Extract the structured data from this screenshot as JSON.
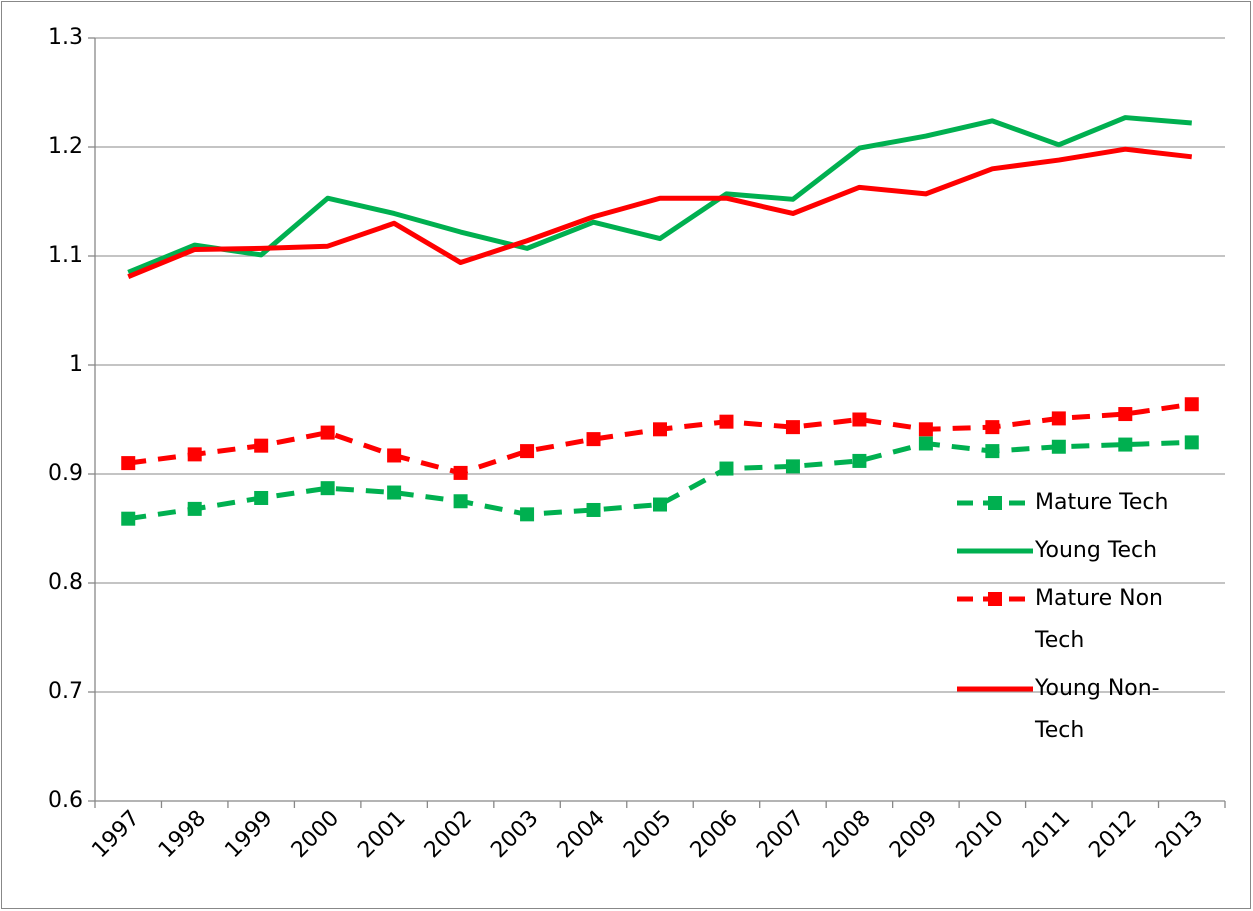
{
  "chart_data": {
    "type": "line",
    "categories": [
      "1997",
      "1998",
      "1999",
      "2000",
      "2001",
      "2002",
      "2003",
      "2004",
      "2005",
      "2006",
      "2007",
      "2008",
      "2009",
      "2010",
      "2011",
      "2012",
      "2013"
    ],
    "series": [
      {
        "name": "Mature Tech",
        "color": "#00b050",
        "line_style": "dashed",
        "marker": "square",
        "values": [
          0.859,
          0.868,
          0.878,
          0.887,
          0.883,
          0.875,
          0.863,
          0.867,
          0.872,
          0.905,
          0.907,
          0.912,
          0.928,
          0.921,
          0.925,
          0.927,
          0.929
        ]
      },
      {
        "name": "Young Tech",
        "color": "#00b050",
        "line_style": "solid",
        "marker": "none",
        "values": [
          1.085,
          1.11,
          1.101,
          1.153,
          1.139,
          1.122,
          1.107,
          1.131,
          1.116,
          1.157,
          1.152,
          1.199,
          1.21,
          1.224,
          1.202,
          1.227,
          1.222
        ]
      },
      {
        "name": "Mature Non Tech",
        "color": "#ff0000",
        "line_style": "dashed",
        "marker": "square",
        "values": [
          0.91,
          0.918,
          0.926,
          0.938,
          0.917,
          0.901,
          0.921,
          0.932,
          0.941,
          0.948,
          0.943,
          0.95,
          0.941,
          0.943,
          0.951,
          0.955,
          0.964
        ]
      },
      {
        "name": "Young Non-Tech",
        "color": "#ff0000",
        "line_style": "solid",
        "marker": "none",
        "values": [
          1.081,
          1.106,
          1.107,
          1.109,
          1.13,
          1.094,
          1.114,
          1.136,
          1.153,
          1.153,
          1.139,
          1.163,
          1.157,
          1.18,
          1.188,
          1.198,
          1.191
        ]
      }
    ],
    "ylim": [
      0.6,
      1.3
    ],
    "yticks": [
      0.6,
      0.7,
      0.8,
      0.9,
      1,
      1.1,
      1.2,
      1.3
    ],
    "grid": true,
    "legend": "right"
  }
}
